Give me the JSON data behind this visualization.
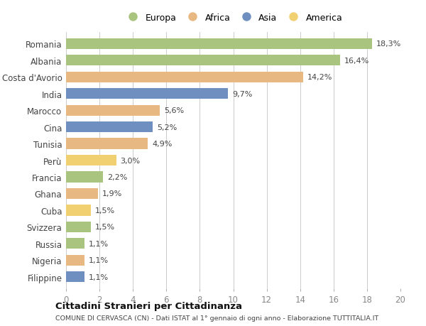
{
  "countries": [
    "Romania",
    "Albania",
    "Costa d'Avorio",
    "India",
    "Marocco",
    "Cina",
    "Tunisia",
    "Perù",
    "Francia",
    "Ghana",
    "Cuba",
    "Svizzera",
    "Russia",
    "Nigeria",
    "Filippine"
  ],
  "values": [
    18.3,
    16.4,
    14.2,
    9.7,
    5.6,
    5.2,
    4.9,
    3.0,
    2.2,
    1.9,
    1.5,
    1.5,
    1.1,
    1.1,
    1.1
  ],
  "labels": [
    "18,3%",
    "16,4%",
    "14,2%",
    "9,7%",
    "5,6%",
    "5,2%",
    "4,9%",
    "3,0%",
    "2,2%",
    "1,9%",
    "1,5%",
    "1,5%",
    "1,1%",
    "1,1%",
    "1,1%"
  ],
  "continents": [
    "Europa",
    "Europa",
    "Africa",
    "Asia",
    "Africa",
    "Asia",
    "Africa",
    "America",
    "Europa",
    "Africa",
    "America",
    "Europa",
    "Europa",
    "Africa",
    "Asia"
  ],
  "colors": {
    "Europa": "#a8c47e",
    "Africa": "#e8b882",
    "Asia": "#6e8fbf",
    "America": "#f0d070"
  },
  "legend_order": [
    "Europa",
    "Africa",
    "Asia",
    "America"
  ],
  "xlim": [
    0,
    20
  ],
  "xticks": [
    0,
    2,
    4,
    6,
    8,
    10,
    12,
    14,
    16,
    18,
    20
  ],
  "title1": "Cittadini Stranieri per Cittadinanza",
  "title2": "COMUNE DI CERVASCA (CN) - Dati ISTAT al 1° gennaio di ogni anno - Elaborazione TUTTITALIA.IT",
  "bg_color": "#ffffff",
  "grid_color": "#cccccc"
}
